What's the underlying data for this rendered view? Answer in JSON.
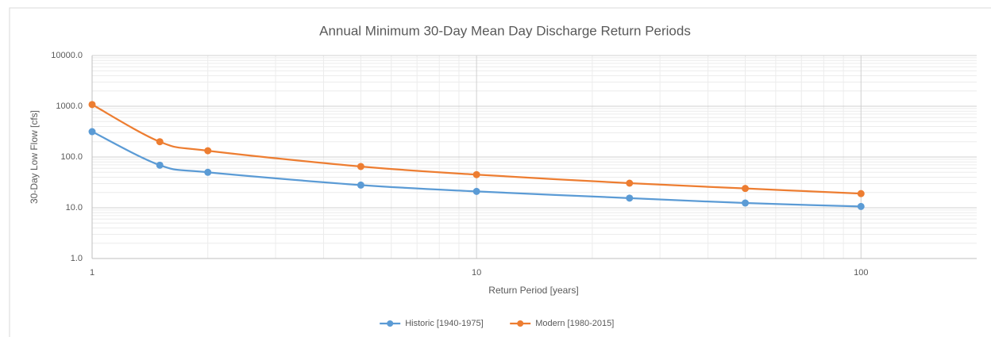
{
  "chart_data": {
    "type": "line",
    "title": "Annual Minimum 30-Day Mean Day Discharge Return Periods",
    "x_label": "Return Period [years]",
    "y_label": "30-Day Low Flow [cfs]",
    "x": [
      1,
      1.5,
      2,
      5,
      10,
      25,
      50,
      100
    ],
    "series": [
      {
        "name": "Historic [1940-1975]",
        "color": "#5b9bd5",
        "values": [
          316,
          69,
          50,
          28,
          21,
          15.5,
          12.4,
          10.6
        ]
      },
      {
        "name": "Modern [1980-2015]",
        "color": "#ed7d31",
        "values": [
          1080,
          200,
          133,
          65,
          45,
          30.5,
          24,
          19
        ]
      }
    ],
    "xlim": [
      1,
      200
    ],
    "xticks": [
      1,
      10,
      100
    ],
    "ylim": [
      1,
      10000
    ],
    "yticks": [
      {
        "value": 1,
        "label": "1.0"
      },
      {
        "value": 10,
        "label": "10.0"
      },
      {
        "value": 100,
        "label": "100.0"
      },
      {
        "value": 1000,
        "label": "1000.0"
      },
      {
        "value": 10000,
        "label": "10000.0"
      }
    ],
    "x_log": true,
    "y_log": true,
    "grid": true,
    "minor_grid": true,
    "smooth": true,
    "legend": "bottom"
  }
}
